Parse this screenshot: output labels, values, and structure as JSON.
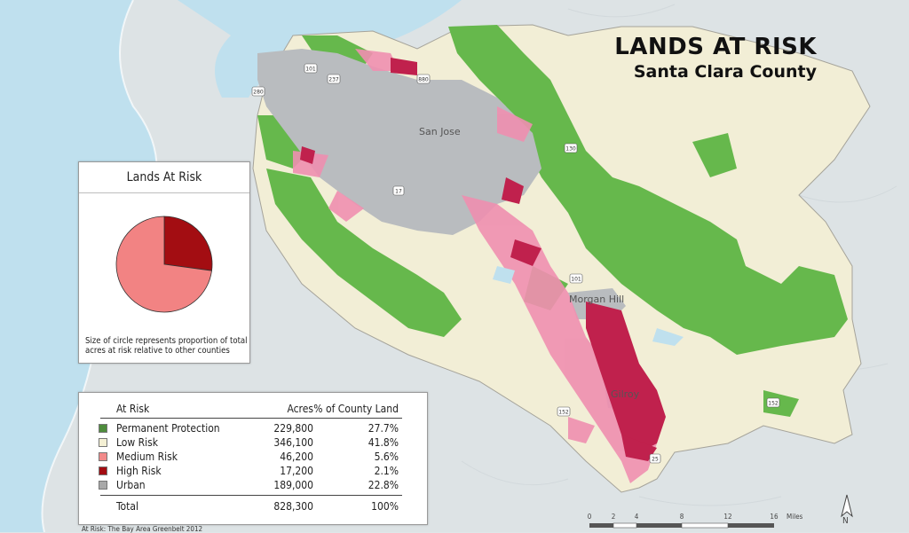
{
  "title": {
    "main": "LANDS AT RISK",
    "sub": "Santa Clara County"
  },
  "map_labels": {
    "city1": "San Jose",
    "city2": "Morgan Hill",
    "city3": "Gilroy",
    "hwy_101_north": "101",
    "hwy_237": "237",
    "hwy_880": "880",
    "hwy_280": "280",
    "hwy_17": "17",
    "hwy_101_south": "101",
    "hwy_130": "130",
    "hwy_152_west": "152",
    "hwy_152_east": "152",
    "hwy_25": "25"
  },
  "pie_panel": {
    "title": "Lands At Risk",
    "note": "Size of circle represents proportion of total acres at risk relative to other counties",
    "slices": [
      {
        "name": "High Risk",
        "value": 17200,
        "color": "#a30d12"
      },
      {
        "name": "Medium Risk",
        "value": 46200,
        "color": "#f28383"
      }
    ]
  },
  "table": {
    "headers": {
      "category": "At Risk",
      "acres": "Acres",
      "percent": "% of County Land"
    },
    "rows": [
      {
        "label": "Permanent Protection",
        "acres": "229,800",
        "percent": "27.7%",
        "color": "#4e8c3c"
      },
      {
        "label": "Low Risk",
        "acres": "346,100",
        "percent": "41.8%",
        "color": "#f4f0d4"
      },
      {
        "label": "Medium Risk",
        "acres": "46,200",
        "percent": "5.6%",
        "color": "#f28a8a"
      },
      {
        "label": "High Risk",
        "acres": "17,200",
        "percent": "2.1%",
        "color": "#a30d12"
      },
      {
        "label": "Urban",
        "acres": "189,000",
        "percent": "22.8%",
        "color": "#a9a9a9"
      }
    ],
    "total": {
      "label": "Total",
      "acres": "828,300",
      "percent": "100%"
    }
  },
  "scale": {
    "ticks": [
      "0",
      "2",
      "4",
      "8",
      "12",
      "16"
    ],
    "unit": "Miles"
  },
  "north": "N",
  "credit": "At Risk: The Bay Area Greenbelt 2012",
  "colors": {
    "ocean": "#bfe0ee",
    "terrain": "#dfe4e6",
    "county_low_risk": "#f2eed6",
    "permanent_protection": "#66b84c",
    "medium_risk": "#ef8fb0",
    "high_risk": "#c0214d",
    "urban": "#b9bcbf"
  }
}
